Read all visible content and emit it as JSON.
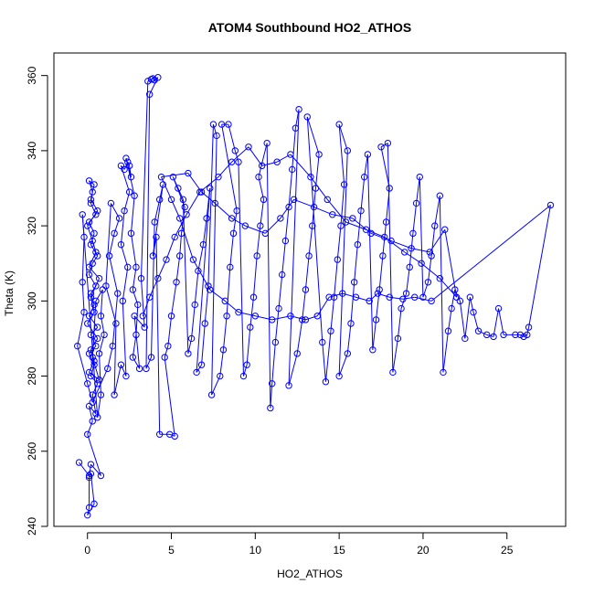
{
  "chart_data": {
    "type": "scatter",
    "title": "ATOM4 Southbound HO2_ATHOS",
    "xlabel": "HO2_ATHOS",
    "ylabel": "Theta (K)",
    "xlim": [
      -2,
      28.5
    ],
    "ylim": [
      240,
      366
    ],
    "xticks": [
      0,
      5,
      10,
      15,
      20,
      25
    ],
    "yticks": [
      240,
      260,
      280,
      300,
      320,
      340,
      360
    ],
    "grid": false,
    "legend": "none",
    "colors": {
      "series": "#0000ff",
      "axis": "#000000",
      "background": "#ffffff"
    },
    "series": [
      {
        "name": "",
        "points": [
          [
            -0.5,
            257
          ],
          [
            0.1,
            253.5
          ],
          [
            0.2,
            254
          ],
          [
            0.4,
            246
          ],
          [
            0.0,
            243
          ],
          [
            0.1,
            245
          ],
          [
            0.1,
            253
          ],
          [
            0.2,
            256.5
          ],
          [
            0.8,
            253.5
          ],
          [
            0.0,
            264.5
          ],
          [
            0.3,
            268
          ],
          [
            0.1,
            272
          ],
          [
            0.5,
            270
          ],
          [
            0.3,
            275
          ],
          [
            0.6,
            278
          ],
          [
            0.2,
            280
          ],
          [
            0.4,
            283
          ],
          [
            0.1,
            286
          ],
          [
            0.5,
            288
          ],
          [
            0.2,
            291
          ],
          [
            0.6,
            293
          ],
          [
            0.1,
            296
          ],
          [
            0.4,
            299
          ],
          [
            0.2,
            302
          ],
          [
            0.5,
            304
          ],
          [
            0.1,
            307
          ],
          [
            0.3,
            310
          ],
          [
            0.6,
            312
          ],
          [
            0.2,
            315
          ],
          [
            0.4,
            318
          ],
          [
            0.1,
            321
          ],
          [
            0.5,
            323
          ],
          [
            0.2,
            326
          ],
          [
            0.3,
            329
          ],
          [
            0.1,
            332
          ],
          [
            0.4,
            331
          ],
          [
            0.2,
            327
          ],
          [
            0.6,
            324
          ],
          [
            0.0,
            320
          ],
          [
            0.3,
            316
          ],
          [
            0.5,
            313
          ],
          [
            0.1,
            309
          ],
          [
            0.7,
            306
          ],
          [
            0.2,
            301
          ],
          [
            0.4,
            297
          ],
          [
            0.0,
            294
          ],
          [
            0.6,
            290
          ],
          [
            0.2,
            287
          ],
          [
            0.4,
            284
          ],
          [
            0.1,
            281
          ],
          [
            0.7,
            279
          ],
          [
            0.3,
            285
          ],
          [
            0.5,
            300
          ],
          [
            0.9,
            303
          ],
          [
            0.8,
            296
          ],
          [
            1.0,
            291
          ],
          [
            0.7,
            286
          ],
          [
            0.8,
            275
          ],
          [
            0.6,
            269
          ],
          [
            -0.3,
            323
          ],
          [
            -0.2,
            317
          ],
          [
            -0.3,
            305
          ],
          [
            -0.2,
            297
          ],
          [
            -0.6,
            288
          ],
          [
            0.0,
            278
          ],
          [
            0.3,
            273
          ],
          [
            1.2,
            282
          ],
          [
            1.5,
            288
          ],
          [
            1.8,
            302
          ],
          [
            1.3,
            312
          ],
          [
            1.6,
            318
          ],
          [
            1.9,
            322
          ],
          [
            1.4,
            326
          ],
          [
            1.1,
            304
          ],
          [
            1.7,
            294
          ],
          [
            1.6,
            275
          ],
          [
            2.0,
            283
          ],
          [
            2.3,
            280
          ],
          [
            2.1,
            300
          ],
          [
            2.4,
            309
          ],
          [
            2.0,
            315
          ],
          [
            2.2,
            324
          ],
          [
            2.5,
            329
          ],
          [
            2.0,
            336
          ],
          [
            2.2,
            335
          ],
          [
            2.4,
            337
          ],
          [
            2.5,
            336
          ],
          [
            2.6,
            333
          ],
          [
            2.3,
            338
          ],
          [
            2.8,
            328
          ],
          [
            2.6,
            318
          ],
          [
            2.9,
            309
          ],
          [
            2.7,
            303
          ],
          [
            3.0,
            299
          ],
          [
            2.9,
            291
          ],
          [
            2.7,
            285
          ],
          [
            3.1,
            282
          ],
          [
            2.8,
            296
          ],
          [
            3.4,
            293
          ],
          [
            3.2,
            306
          ],
          [
            3.6,
            358.5
          ],
          [
            3.8,
            359
          ],
          [
            3.9,
            359.2
          ],
          [
            4.0,
            358.8
          ],
          [
            4.2,
            359.5
          ],
          [
            3.7,
            355
          ],
          [
            3.5,
            282
          ],
          [
            3.8,
            285
          ],
          [
            4.0,
            321
          ],
          [
            4.3,
            327
          ],
          [
            4.5,
            331
          ],
          [
            3.9,
            312
          ],
          [
            4.1,
            317
          ],
          [
            4.3,
            264.5
          ],
          [
            4.9,
            264.5
          ],
          [
            5.2,
            264
          ],
          [
            4.6,
            285
          ],
          [
            4.8,
            288
          ],
          [
            5.0,
            296
          ],
          [
            5.3,
            305
          ],
          [
            5.5,
            312
          ],
          [
            5.6,
            318
          ],
          [
            5.8,
            325
          ],
          [
            5.1,
            333
          ],
          [
            5.4,
            330
          ],
          [
            5.7,
            327
          ],
          [
            6.0,
            286
          ],
          [
            6.2,
            290
          ],
          [
            6.4,
            299
          ],
          [
            6.6,
            308
          ],
          [
            6.9,
            315
          ],
          [
            7.1,
            322
          ],
          [
            7.3,
            330
          ],
          [
            6.5,
            281
          ],
          [
            6.8,
            283
          ],
          [
            7.0,
            294
          ],
          [
            7.2,
            304
          ],
          [
            7.5,
            347
          ],
          [
            7.7,
            344
          ],
          [
            7.4,
            275
          ],
          [
            7.9,
            280
          ],
          [
            8.1,
            287
          ],
          [
            8.3,
            296
          ],
          [
            8.5,
            309
          ],
          [
            8.7,
            318
          ],
          [
            8.9,
            324
          ],
          [
            8.0,
            347
          ],
          [
            8.4,
            347
          ],
          [
            8.8,
            340
          ],
          [
            9.0,
            337
          ],
          [
            9.3,
            280
          ],
          [
            9.5,
            283
          ],
          [
            9.7,
            293
          ],
          [
            9.9,
            301
          ],
          [
            10.1,
            312
          ],
          [
            10.3,
            320
          ],
          [
            10.5,
            327
          ],
          [
            10.2,
            333
          ],
          [
            10.7,
            342
          ],
          [
            10.9,
            271.5
          ],
          [
            11.0,
            278
          ],
          [
            11.2,
            289
          ],
          [
            11.4,
            298
          ],
          [
            11.6,
            307
          ],
          [
            11.8,
            316
          ],
          [
            12.0,
            325
          ],
          [
            12.2,
            335
          ],
          [
            12.4,
            346
          ],
          [
            12.6,
            351
          ],
          [
            12.0,
            277.5
          ],
          [
            12.5,
            286
          ],
          [
            12.8,
            295
          ],
          [
            13.0,
            303
          ],
          [
            13.2,
            312
          ],
          [
            13.4,
            320
          ],
          [
            13.6,
            330
          ],
          [
            13.8,
            339
          ],
          [
            13.1,
            349
          ],
          [
            14.0,
            289
          ],
          [
            14.2,
            278.5
          ],
          [
            14.5,
            292
          ],
          [
            14.7,
            301
          ],
          [
            14.9,
            311
          ],
          [
            15.1,
            320
          ],
          [
            15.3,
            331
          ],
          [
            15.0,
            347
          ],
          [
            15.5,
            340
          ],
          [
            15.0,
            280
          ],
          [
            15.5,
            286
          ],
          [
            15.7,
            294
          ],
          [
            15.9,
            305
          ],
          [
            16.1,
            315
          ],
          [
            16.3,
            324
          ],
          [
            16.5,
            333
          ],
          [
            16.7,
            339
          ],
          [
            17.0,
            287
          ],
          [
            17.2,
            295
          ],
          [
            17.4,
            303
          ],
          [
            17.6,
            312
          ],
          [
            17.8,
            321
          ],
          [
            18.0,
            330
          ],
          [
            17.5,
            341
          ],
          [
            17.9,
            342
          ],
          [
            18.2,
            281
          ],
          [
            18.5,
            290
          ],
          [
            18.7,
            298
          ],
          [
            19.0,
            302
          ],
          [
            19.2,
            309
          ],
          [
            19.4,
            318
          ],
          [
            19.6,
            326
          ],
          [
            19.8,
            333
          ],
          [
            20.0,
            301
          ],
          [
            20.3,
            305
          ],
          [
            20.5,
            312
          ],
          [
            20.7,
            320
          ],
          [
            21.0,
            328
          ],
          [
            21.2,
            281
          ],
          [
            21.5,
            292
          ],
          [
            21.7,
            298
          ],
          [
            21.9,
            303
          ],
          [
            22.2,
            300
          ],
          [
            22.5,
            290
          ],
          [
            22.8,
            301
          ],
          [
            23.0,
            297
          ],
          [
            23.3,
            292
          ],
          [
            23.8,
            291
          ],
          [
            24.2,
            290.5
          ],
          [
            24.5,
            298
          ],
          [
            24.8,
            291
          ],
          [
            25.5,
            291
          ],
          [
            25.8,
            291
          ],
          [
            26.0,
            290.5
          ],
          [
            26.2,
            291
          ],
          [
            26.3,
            293
          ],
          [
            27.6,
            325.5
          ],
          [
            20.5,
            300
          ],
          [
            19.5,
            301
          ],
          [
            18.8,
            300.5
          ],
          [
            18.0,
            301
          ],
          [
            17.3,
            302
          ],
          [
            16.8,
            300
          ],
          [
            16.0,
            301
          ],
          [
            15.2,
            302
          ],
          [
            14.4,
            301
          ],
          [
            13.7,
            296
          ],
          [
            13.0,
            295
          ],
          [
            12.1,
            296
          ],
          [
            11.0,
            295
          ],
          [
            10.0,
            296
          ],
          [
            9.0,
            297
          ],
          [
            8.2,
            300
          ],
          [
            7.3,
            303
          ],
          [
            6.3,
            311
          ],
          [
            5.5,
            322
          ],
          [
            5.0,
            327
          ],
          [
            4.4,
            333
          ],
          [
            6.0,
            334
          ],
          [
            6.8,
            329
          ],
          [
            7.6,
            326
          ],
          [
            8.6,
            322
          ],
          [
            9.4,
            320
          ],
          [
            10.6,
            318
          ],
          [
            11.5,
            322
          ],
          [
            12.3,
            327
          ],
          [
            13.5,
            325
          ],
          [
            14.6,
            323
          ],
          [
            15.8,
            322
          ],
          [
            16.9,
            318
          ],
          [
            18.1,
            316
          ],
          [
            19.3,
            314
          ],
          [
            20.4,
            313
          ],
          [
            21.3,
            319
          ],
          [
            22.0,
            301
          ],
          [
            21.0,
            306
          ],
          [
            19.9,
            310
          ],
          [
            18.9,
            313
          ],
          [
            17.7,
            317
          ],
          [
            16.6,
            319
          ],
          [
            15.4,
            321
          ],
          [
            14.3,
            327
          ],
          [
            13.3,
            333
          ],
          [
            12.1,
            339
          ],
          [
            11.3,
            337
          ],
          [
            10.4,
            336
          ],
          [
            9.6,
            341
          ],
          [
            8.6,
            337
          ],
          [
            7.8,
            333
          ],
          [
            6.7,
            329
          ],
          [
            5.9,
            323
          ],
          [
            5.2,
            317
          ],
          [
            4.7,
            311
          ],
          [
            4.2,
            306
          ],
          [
            3.7,
            301
          ],
          [
            3.3,
            296
          ]
        ]
      }
    ]
  }
}
